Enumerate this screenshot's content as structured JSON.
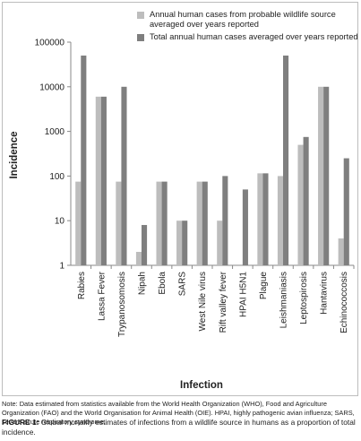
{
  "chart_data": {
    "type": "bar",
    "xlabel": "Infection",
    "ylabel": "Incidence",
    "yscale": "log",
    "ylim": [
      1,
      100000
    ],
    "yticks": [
      "1",
      "10",
      "100",
      "1000",
      "10000",
      "100000"
    ],
    "categories": [
      "Rabies",
      "Lassa Fever",
      "Trypanosomosis",
      "Nipah",
      "Ebola",
      "SARS",
      "West Nile virus",
      "Rift valley fever",
      "HPAI H5N1",
      "Plague",
      "Leishmaniasis",
      "Leptospirosis",
      "Hantavirus",
      "Echinococcosis"
    ],
    "series": [
      {
        "name": "Annual human cases from probable wildlife source averaged over years reported",
        "color": "#bdbdbd",
        "values": [
          75,
          6000,
          75,
          2,
          75,
          10,
          75,
          10,
          0,
          115,
          100,
          500,
          10000,
          4
        ]
      },
      {
        "name": "Total annual human cases averaged over years reported",
        "color": "#7f7f7f",
        "values": [
          50000,
          6000,
          10000,
          8,
          75,
          10,
          75,
          100,
          50,
          115,
          50000,
          750,
          10000,
          250
        ]
      }
    ],
    "legend_position": "top",
    "grid": false
  },
  "notes": "Note: Data estimated from statistics available from the World Health Organization (WHO), Food and Agriculture Organization (FAO) and the World Organisation for Animal Health (OIE). HPAI, highly pathogenic avian influenza; SARS, severe acute respiratory syndrome.",
  "caption": {
    "label": "FIGURE 1:",
    "text": " Global mortality estimates of infections from a wildlife source in humans as a proportion of total incidence."
  }
}
